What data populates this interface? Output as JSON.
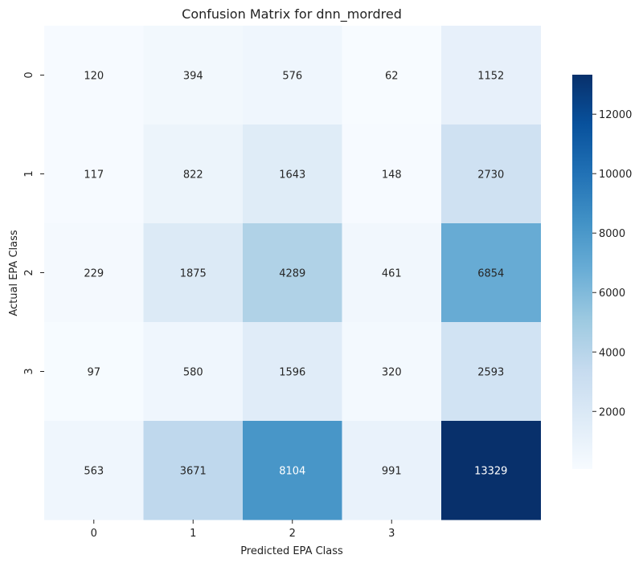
{
  "chart_data": {
    "type": "heatmap",
    "title": "Confusion Matrix for dnn_mordred",
    "xlabel": "Predicted EPA Class",
    "ylabel": "Actual EPA Class",
    "x_tick_labels": [
      "0",
      "1",
      "2",
      "3",
      ""
    ],
    "y_tick_labels": [
      "0",
      "1",
      "2",
      "3",
      ""
    ],
    "values": [
      [
        120,
        394,
        576,
        62,
        1152
      ],
      [
        117,
        822,
        1643,
        148,
        2730
      ],
      [
        229,
        1875,
        4289,
        461,
        6854
      ],
      [
        97,
        580,
        1596,
        320,
        2593
      ],
      [
        563,
        3671,
        8104,
        991,
        13329
      ]
    ],
    "colorbar": {
      "range": [
        62,
        13329
      ],
      "ticks": [
        2000,
        4000,
        6000,
        8000,
        10000,
        12000
      ],
      "tick_labels": [
        "2000",
        "4000",
        "6000",
        "8000",
        "10000",
        "12000"
      ],
      "colormap": "Blues",
      "colors": [
        "#f7fbff",
        "#deebf7",
        "#c6dbef",
        "#9ecae1",
        "#6baed6",
        "#4292c6",
        "#2171b5",
        "#08519c",
        "#08306b"
      ]
    },
    "annotation_light_color": "#ffffff",
    "annotation_dark_color": "#262626"
  }
}
